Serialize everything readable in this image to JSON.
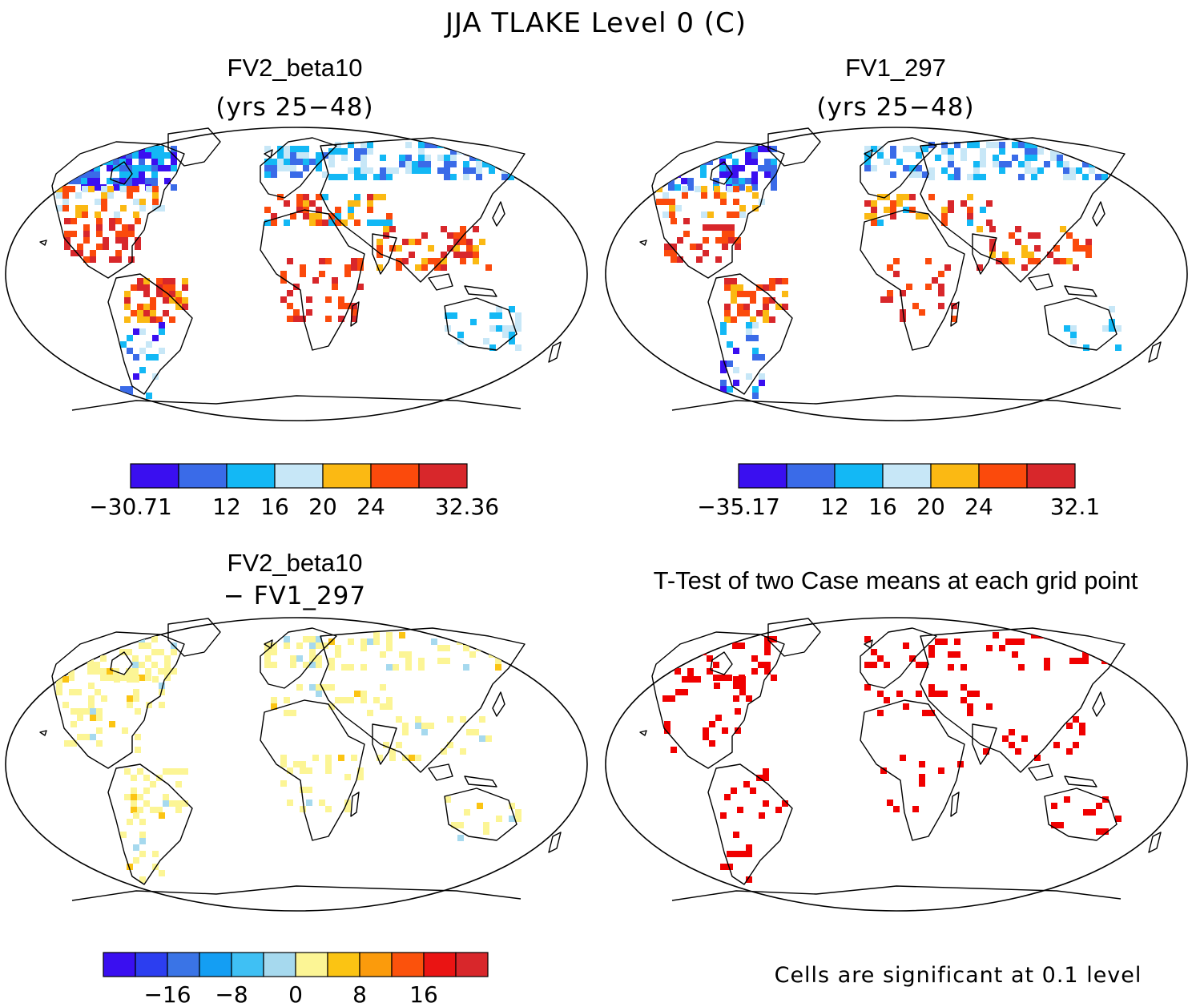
{
  "figure_title": "JJA TLAKE Level 0 (C)",
  "panels": [
    {
      "title": "FV2_beta10",
      "subtitle": "(yrs 25−48)",
      "colorbar": {
        "colors": [
          "#3a0ff0",
          "#3a6be8",
          "#13b8f5",
          "#c7e7f7",
          "#fbb913",
          "#fb4a0c",
          "#d8272b"
        ],
        "tick_labels": [
          "−30.71",
          "12",
          "16",
          "20",
          "24",
          "32.36"
        ]
      }
    },
    {
      "title": "FV1_297",
      "subtitle": "(yrs 25−48)",
      "colorbar": {
        "colors": [
          "#3a0ff0",
          "#3a6be8",
          "#13b8f5",
          "#c7e7f7",
          "#fbb913",
          "#fb4a0c",
          "#d8272b"
        ],
        "tick_labels": [
          "−35.17",
          "12",
          "16",
          "20",
          "24",
          "32.1"
        ]
      }
    },
    {
      "title": "FV2_beta10",
      "subtitle": "− FV1_297",
      "colorbar": {
        "colors": [
          "#3a0ff0",
          "#2c3ef0",
          "#3a74e6",
          "#149ef3",
          "#3fc0f4",
          "#a6d9ee",
          "#fcf595",
          "#fbc413",
          "#fb9b0c",
          "#fb520c",
          "#ea1413",
          "#d8272b"
        ],
        "tick_labels": [
          "−16",
          "−8",
          "0",
          "8",
          "16"
        ]
      }
    },
    {
      "title": "T-Test of two Case means at each grid point",
      "significance_color": "#f00000",
      "note": "Cells are significant at 0.1 level"
    }
  ]
}
